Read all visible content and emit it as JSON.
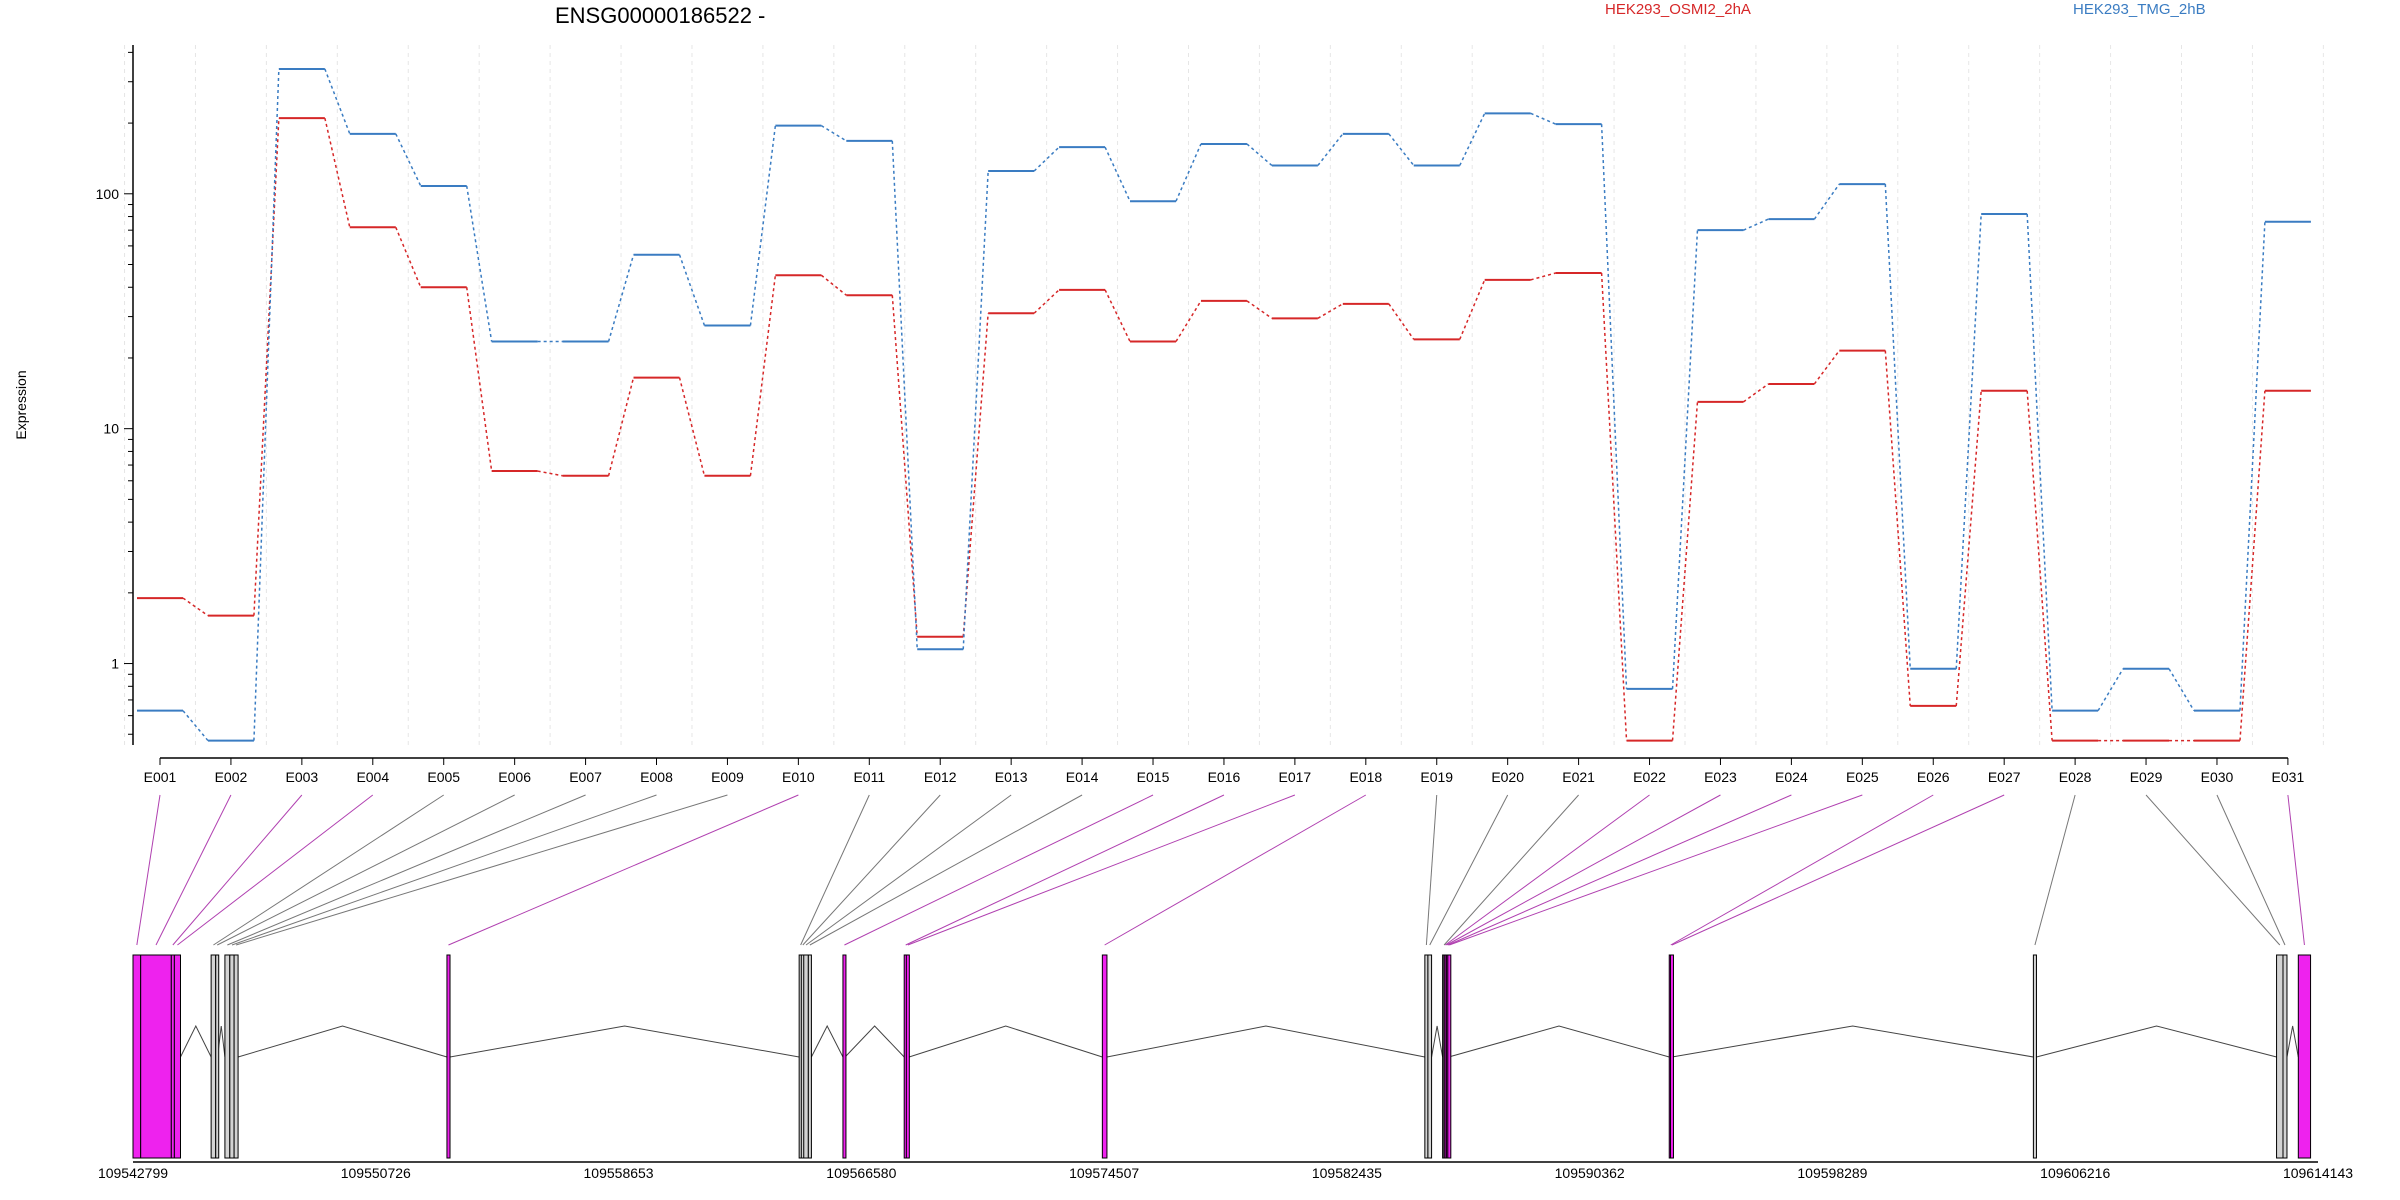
{
  "chart_data": {
    "type": "line",
    "title": "ENSG00000186522 -",
    "ylabel": "Expression",
    "xlabel": "",
    "yscale": "log",
    "ylim": [
      0.45,
      430
    ],
    "yticks": [
      1,
      10,
      100
    ],
    "ytick_labels": [
      "1",
      "10",
      "100"
    ],
    "grid": "vertical-dashed",
    "legend_position": "top",
    "categories": [
      "E001",
      "E002",
      "E003",
      "E004",
      "E005",
      "E006",
      "E007",
      "E008",
      "E009",
      "E010",
      "E011",
      "E012",
      "E013",
      "E014",
      "E015",
      "E016",
      "E017",
      "E018",
      "E019",
      "E020",
      "E021",
      "E022",
      "E023",
      "E024",
      "E025",
      "E026",
      "E027",
      "E028",
      "E029",
      "E030",
      "E031"
    ],
    "series": [
      {
        "name": "HEK293_OSMI2_2hA",
        "color": "#d62728",
        "values": [
          1.9,
          1.6,
          210,
          72,
          40,
          6.6,
          6.3,
          16.5,
          6.3,
          45,
          37,
          1.3,
          31,
          39,
          23.5,
          35,
          29.5,
          34,
          24,
          43,
          46,
          0.47,
          13,
          15.5,
          21.5,
          0.66,
          14.5,
          0.47,
          0.47,
          0.47,
          14.5
        ]
      },
      {
        "name": "HEK293_TMG_2hB",
        "color": "#3a7cc2",
        "values": [
          0.63,
          0.47,
          340,
          180,
          108,
          23.5,
          23.5,
          55,
          27.5,
          195,
          168,
          1.15,
          125,
          158,
          93,
          163,
          132,
          180,
          132,
          220,
          198,
          0.78,
          70,
          78,
          110,
          0.95,
          82,
          0.63,
          0.95,
          0.63,
          76
        ]
      }
    ],
    "gene_track": {
      "coordinate_labels": [
        "109542799",
        "109550726",
        "109558653",
        "109566580",
        "109574507",
        "109582435",
        "109590362",
        "109598289",
        "109606216",
        "109614143"
      ],
      "range": [
        109542799,
        109614143
      ],
      "exon_colors": {
        "highlight": "#ee22ee",
        "normal": "#d3d3d3",
        "outline": "#000000"
      },
      "exons": [
        {
          "label": "E001",
          "start": 109542799,
          "end": 109543050,
          "color": "highlight"
        },
        {
          "label": "E002",
          "start": 109543050,
          "end": 109544050,
          "color": "highlight"
        },
        {
          "label": "E003",
          "start": 109544050,
          "end": 109544150,
          "color": "highlight"
        },
        {
          "label": "E004",
          "start": 109544150,
          "end": 109544350,
          "color": "highlight"
        },
        {
          "label": "E005",
          "start": 109545350,
          "end": 109545500,
          "color": "normal"
        },
        {
          "label": "E006",
          "start": 109545500,
          "end": 109545560,
          "color": "normal"
        },
        {
          "label": "E007",
          "start": 109545800,
          "end": 109545960,
          "color": "normal"
        },
        {
          "label": "E008",
          "start": 109545960,
          "end": 109546100,
          "color": "normal"
        },
        {
          "label": "E009",
          "start": 109546100,
          "end": 109546230,
          "color": "normal"
        },
        {
          "label": "E010",
          "start": 109553050,
          "end": 109553150,
          "color": "highlight"
        },
        {
          "label": "E011",
          "start": 109564550,
          "end": 109564620,
          "color": "normal"
        },
        {
          "label": "E012",
          "start": 109564620,
          "end": 109564700,
          "color": "normal"
        },
        {
          "label": "E013",
          "start": 109564700,
          "end": 109564850,
          "color": "normal"
        },
        {
          "label": "E014",
          "start": 109564850,
          "end": 109564950,
          "color": "normal"
        },
        {
          "label": "E015",
          "start": 109565980,
          "end": 109566050,
          "color": "highlight"
        },
        {
          "label": "E016",
          "start": 109567980,
          "end": 109568050,
          "color": "highlight"
        },
        {
          "label": "E017",
          "start": 109568050,
          "end": 109568140,
          "color": "highlight"
        },
        {
          "label": "E018",
          "start": 109574450,
          "end": 109574600,
          "color": "highlight"
        },
        {
          "label": "E019",
          "start": 109584980,
          "end": 109585080,
          "color": "normal"
        },
        {
          "label": "E020",
          "start": 109585080,
          "end": 109585200,
          "color": "normal"
        },
        {
          "label": "E021",
          "start": 109585560,
          "end": 109585600,
          "color": "normal"
        },
        {
          "label": "E022",
          "start": 109585600,
          "end": 109585640,
          "color": "highlight"
        },
        {
          "label": "E023",
          "start": 109585640,
          "end": 109585690,
          "color": "highlight"
        },
        {
          "label": "E024",
          "start": 109585690,
          "end": 109585730,
          "color": "highlight"
        },
        {
          "label": "E025",
          "start": 109585730,
          "end": 109585760,
          "color": "highlight"
        },
        {
          "label": "E026",
          "start": 109592960,
          "end": 109593000,
          "color": "highlight"
        },
        {
          "label": "E027",
          "start": 109593000,
          "end": 109593050,
          "color": "highlight"
        },
        {
          "label": "E028",
          "start": 109604850,
          "end": 109604950,
          "color": "normal"
        },
        {
          "label": "E029",
          "start": 109612790,
          "end": 109613000,
          "color": "normal"
        },
        {
          "label": "E030",
          "start": 109613000,
          "end": 109613130,
          "color": "normal"
        },
        {
          "label": "E031",
          "start": 109613500,
          "end": 109613900,
          "color": "highlight"
        }
      ],
      "introns": [
        [
          109544350,
          109545350
        ],
        [
          109545560,
          109545800
        ],
        [
          109546230,
          109553050
        ],
        [
          109553150,
          109564550
        ],
        [
          109564950,
          109565980
        ],
        [
          109566050,
          109567980
        ],
        [
          109568140,
          109574450
        ],
        [
          109574600,
          109584980
        ],
        [
          109585200,
          109585560
        ],
        [
          109585760,
          109592960
        ],
        [
          109593050,
          109604850
        ],
        [
          109604950,
          109612790
        ],
        [
          109613130,
          109613500
        ]
      ]
    }
  }
}
